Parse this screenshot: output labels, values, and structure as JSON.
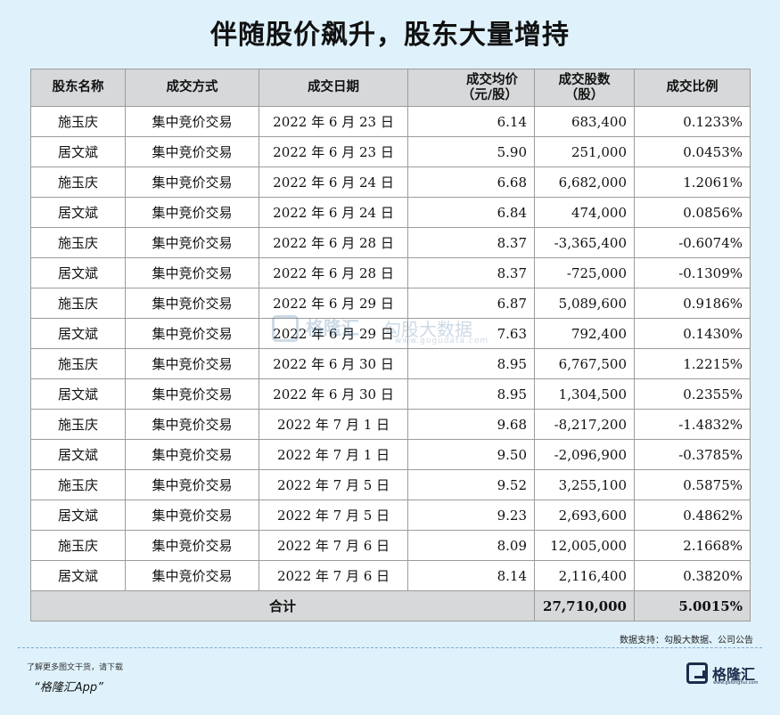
{
  "title": "伴随股价飙升，股东大量增持",
  "table": {
    "headers": {
      "name": "股东名称",
      "method": "成交方式",
      "date": "成交日期",
      "avg_price_1": "成交均价",
      "avg_price_2": "（元/股）",
      "shares_1": "成交股数",
      "shares_2": "（股）",
      "ratio": "成交比例"
    },
    "rows": [
      {
        "name": "施玉庆",
        "method": "集中竞价交易",
        "date": "2022 年 6 月 23 日",
        "price": "6.14",
        "shares": "683,400",
        "ratio": "0.1233%"
      },
      {
        "name": "居文斌",
        "method": "集中竞价交易",
        "date": "2022 年 6 月 23 日",
        "price": "5.90",
        "shares": "251,000",
        "ratio": "0.0453%"
      },
      {
        "name": "施玉庆",
        "method": "集中竞价交易",
        "date": "2022 年 6 月 24 日",
        "price": "6.68",
        "shares": "6,682,000",
        "ratio": "1.2061%"
      },
      {
        "name": "居文斌",
        "method": "集中竞价交易",
        "date": "2022 年 6 月 24 日",
        "price": "6.84",
        "shares": "474,000",
        "ratio": "0.0856%"
      },
      {
        "name": "施玉庆",
        "method": "集中竞价交易",
        "date": "2022 年 6 月 28 日",
        "price": "8.37",
        "shares": "-3,365,400",
        "ratio": "-0.6074%"
      },
      {
        "name": "居文斌",
        "method": "集中竞价交易",
        "date": "2022 年 6 月 28 日",
        "price": "8.37",
        "shares": "-725,000",
        "ratio": "-0.1309%"
      },
      {
        "name": "施玉庆",
        "method": "集中竞价交易",
        "date": "2022 年 6 月 29 日",
        "price": "6.87",
        "shares": "5,089,600",
        "ratio": "0.9186%"
      },
      {
        "name": "居文斌",
        "method": "集中竞价交易",
        "date": "2022 年 6 月 29 日",
        "price": "7.63",
        "shares": "792,400",
        "ratio": "0.1430%"
      },
      {
        "name": "施玉庆",
        "method": "集中竞价交易",
        "date": "2022 年 6 月 30 日",
        "price": "8.95",
        "shares": "6,767,500",
        "ratio": "1.2215%"
      },
      {
        "name": "居文斌",
        "method": "集中竞价交易",
        "date": "2022 年 6 月 30 日",
        "price": "8.95",
        "shares": "1,304,500",
        "ratio": "0.2355%"
      },
      {
        "name": "施玉庆",
        "method": "集中竞价交易",
        "date": "2022 年 7 月 1 日",
        "price": "9.68",
        "shares": "-8,217,200",
        "ratio": "-1.4832%"
      },
      {
        "name": "居文斌",
        "method": "集中竞价交易",
        "date": "2022 年 7 月 1 日",
        "price": "9.50",
        "shares": "-2,096,900",
        "ratio": "-0.3785%"
      },
      {
        "name": "施玉庆",
        "method": "集中竞价交易",
        "date": "2022 年 7 月 5 日",
        "price": "9.52",
        "shares": "3,255,100",
        "ratio": "0.5875%"
      },
      {
        "name": "居文斌",
        "method": "集中竞价交易",
        "date": "2022 年 7 月 5 日",
        "price": "9.23",
        "shares": "2,693,600",
        "ratio": "0.4862%"
      },
      {
        "name": "施玉庆",
        "method": "集中竞价交易",
        "date": "2022 年 7 月 6 日",
        "price": "8.09",
        "shares": "12,005,000",
        "ratio": "2.1668%"
      },
      {
        "name": "居文斌",
        "method": "集中竞价交易",
        "date": "2022 年 7 月 6 日",
        "price": "8.14",
        "shares": "2,116,400",
        "ratio": "0.3820%"
      }
    ],
    "total": {
      "label": "合计",
      "shares": "27,710,000",
      "ratio": "5.0015%"
    }
  },
  "watermark": {
    "brand": "格隆汇",
    "sub": "勾股大数据",
    "url": "www.gogudata.com"
  },
  "source": "数据支持：勾股大数据、公司公告",
  "footer": {
    "note": "了解更多图文干货，请下载",
    "app": "“格隆汇App”"
  },
  "brand": {
    "name": "格隆汇",
    "url": "www.gelonghui.com"
  },
  "colors": {
    "background": "#dff2fc",
    "header_fill": "#d6d8da",
    "brand": "#1c2d4a"
  }
}
